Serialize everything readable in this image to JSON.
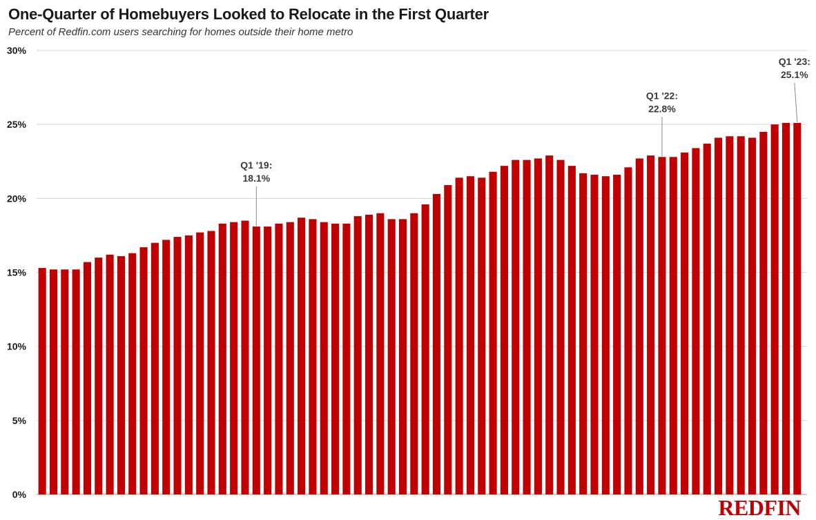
{
  "colors": {
    "bar": "#c00000",
    "grid": "#d6d6d6",
    "text": "#1a1a1a"
  },
  "brand": {
    "logo_text": "REDFIN"
  },
  "chart_data": {
    "type": "bar",
    "title": "One-Quarter of Homebuyers Looked to Relocate in the First Quarter",
    "subtitle": "Percent of Redfin.com users searching for homes outside their home metro",
    "xlabel": "",
    "ylabel": "",
    "ylim": [
      0,
      30
    ],
    "yticks": [
      0,
      5,
      10,
      15,
      20,
      25,
      30
    ],
    "ytick_labels": [
      "0%",
      "5%",
      "10%",
      "15%",
      "20%",
      "25%",
      "30%"
    ],
    "grid": true,
    "values": [
      15.3,
      15.2,
      15.2,
      15.2,
      15.7,
      16.0,
      16.2,
      16.1,
      16.3,
      16.7,
      17.0,
      17.2,
      17.4,
      17.5,
      17.7,
      17.8,
      18.3,
      18.4,
      18.5,
      18.1,
      18.1,
      18.3,
      18.4,
      18.7,
      18.6,
      18.4,
      18.3,
      18.3,
      18.8,
      18.9,
      19.0,
      18.6,
      18.6,
      19.0,
      19.6,
      20.3,
      20.9,
      21.4,
      21.5,
      21.4,
      21.8,
      22.2,
      22.6,
      22.6,
      22.7,
      22.9,
      22.6,
      22.2,
      21.7,
      21.6,
      21.5,
      21.6,
      22.1,
      22.7,
      22.9,
      22.8,
      22.8,
      23.1,
      23.4,
      23.7,
      24.1,
      24.2,
      24.2,
      24.1,
      24.5,
      25.0,
      25.1,
      25.1
    ],
    "annotations": [
      {
        "index": 19,
        "line1": "Q1 '19:",
        "line2": "18.1%"
      },
      {
        "index": 55,
        "line1": "Q1 '22:",
        "line2": "22.8%"
      },
      {
        "index": 67,
        "line1": "Q1 '23:",
        "line2": "25.1%"
      }
    ]
  }
}
